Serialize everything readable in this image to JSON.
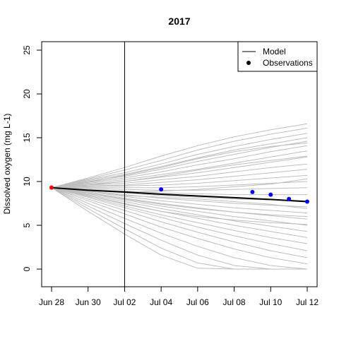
{
  "chart_data": {
    "type": "line",
    "title": "2017",
    "xlabel": "",
    "ylabel": "Dissolved oxygen (mg L-1)",
    "x_range": [
      "2017-06-28",
      "2017-07-12"
    ],
    "x_ticks": [
      {
        "date": "2017-06-28",
        "label": "Jun 28"
      },
      {
        "date": "2017-06-30",
        "label": "Jun 30"
      },
      {
        "date": "2017-07-02",
        "label": "Jul 02"
      },
      {
        "date": "2017-07-04",
        "label": "Jul 04"
      },
      {
        "date": "2017-07-06",
        "label": "Jul 06"
      },
      {
        "date": "2017-07-08",
        "label": "Jul 08"
      },
      {
        "date": "2017-07-10",
        "label": "Jul 10"
      },
      {
        "date": "2017-07-12",
        "label": "Jul 12"
      }
    ],
    "ylim": [
      -2,
      26
    ],
    "y_ticks": [
      0,
      5,
      10,
      15,
      20,
      25
    ],
    "grid": false,
    "forecast_start": "2017-07-02",
    "legend": {
      "position": "top-right",
      "entries": [
        {
          "label": "Model",
          "symbol": "line"
        },
        {
          "label": "Observations",
          "symbol": "point"
        }
      ]
    },
    "model_mean": {
      "x": [
        "2017-06-28",
        "2017-06-30",
        "2017-07-02",
        "2017-07-04",
        "2017-07-06",
        "2017-07-08",
        "2017-07-10",
        "2017-07-12"
      ],
      "y": [
        9.3,
        9.0,
        8.8,
        8.55,
        8.35,
        8.15,
        7.95,
        7.7
      ],
      "color": "#000000"
    },
    "ensemble": {
      "color": "#bebebe",
      "x": [
        "2017-06-28",
        "2017-06-30",
        "2017-07-02",
        "2017-07-04",
        "2017-07-06",
        "2017-07-08",
        "2017-07-10",
        "2017-07-12"
      ],
      "members": [
        [
          9.3,
          10.4,
          11.6,
          12.9,
          14.1,
          15.1,
          15.9,
          16.6
        ],
        [
          9.3,
          10.3,
          11.3,
          12.4,
          13.6,
          14.6,
          15.4,
          16.1
        ],
        [
          9.3,
          10.2,
          11.0,
          12.0,
          13.1,
          14.0,
          14.8,
          15.5
        ],
        [
          9.3,
          10.1,
          10.8,
          11.7,
          12.7,
          13.6,
          14.3,
          15.0
        ],
        [
          9.3,
          10.0,
          10.6,
          11.4,
          12.3,
          13.1,
          13.9,
          14.6
        ],
        [
          9.3,
          9.9,
          10.4,
          11.1,
          11.9,
          12.6,
          13.4,
          14.1
        ],
        [
          9.3,
          9.8,
          10.2,
          10.8,
          11.4,
          12.1,
          12.8,
          13.5
        ],
        [
          9.3,
          9.7,
          10.0,
          10.5,
          11.0,
          11.6,
          12.2,
          12.8
        ],
        [
          9.3,
          9.6,
          9.8,
          10.2,
          10.6,
          11.1,
          11.6,
          12.0
        ],
        [
          9.3,
          9.5,
          9.6,
          9.9,
          10.2,
          10.6,
          11.0,
          11.4
        ],
        [
          9.3,
          9.4,
          9.5,
          9.6,
          9.8,
          10.1,
          10.4,
          10.7
        ],
        [
          9.3,
          9.3,
          9.3,
          9.3,
          9.4,
          9.6,
          9.8,
          10.0
        ],
        [
          9.3,
          9.2,
          9.1,
          9.0,
          9.0,
          9.1,
          9.2,
          9.3
        ],
        [
          9.3,
          9.1,
          8.9,
          8.7,
          8.6,
          8.5,
          8.5,
          8.5
        ],
        [
          9.3,
          9.0,
          8.7,
          8.4,
          8.2,
          8.0,
          7.9,
          7.8
        ],
        [
          9.3,
          8.9,
          8.5,
          8.1,
          7.8,
          7.5,
          7.3,
          7.1
        ],
        [
          9.3,
          8.8,
          8.3,
          7.8,
          7.4,
          7.0,
          6.7,
          6.4
        ],
        [
          9.3,
          8.7,
          8.1,
          7.5,
          7.0,
          6.5,
          6.1,
          5.7
        ],
        [
          9.3,
          8.6,
          7.9,
          7.2,
          6.6,
          6.0,
          5.5,
          5.0
        ],
        [
          9.3,
          8.5,
          7.7,
          6.9,
          6.2,
          5.5,
          4.9,
          4.3
        ],
        [
          9.3,
          8.4,
          7.5,
          6.6,
          5.8,
          5.0,
          4.3,
          3.6
        ],
        [
          9.3,
          8.3,
          7.2,
          6.2,
          5.3,
          4.4,
          3.6,
          2.9
        ],
        [
          9.3,
          8.2,
          7.0,
          5.9,
          4.8,
          3.8,
          2.9,
          2.1
        ],
        [
          9.3,
          8.0,
          6.7,
          5.4,
          4.2,
          3.1,
          2.1,
          1.3
        ],
        [
          9.3,
          7.8,
          6.3,
          4.8,
          3.5,
          2.3,
          1.3,
          0.6
        ],
        [
          9.3,
          7.5,
          5.8,
          4.1,
          2.6,
          1.3,
          0.4,
          0.0
        ],
        [
          9.3,
          7.2,
          5.2,
          3.3,
          1.6,
          0.4,
          0.0,
          0.0
        ],
        [
          9.3,
          6.9,
          4.6,
          2.4,
          0.7,
          0.0,
          0.0,
          0.0
        ],
        [
          9.3,
          6.6,
          4.0,
          1.6,
          0.1,
          0.0,
          0.0,
          0.0
        ],
        [
          9.3,
          9.9,
          10.7,
          11.6,
          12.6,
          13.4,
          14.0,
          14.4
        ],
        [
          9.3,
          9.6,
          10.0,
          10.6,
          11.3,
          11.9,
          12.4,
          12.9
        ],
        [
          9.3,
          9.1,
          8.8,
          8.9,
          9.1,
          9.4,
          9.7,
          10.3
        ],
        [
          9.3,
          8.9,
          8.4,
          8.2,
          8.0,
          7.7,
          7.4,
          6.9
        ],
        [
          9.3,
          8.7,
          8.0,
          7.4,
          6.9,
          6.5,
          6.2,
          6.0
        ],
        [
          9.3,
          8.4,
          7.4,
          6.6,
          6.0,
          5.6,
          5.3,
          5.1
        ]
      ]
    },
    "observations": {
      "color": "#0000ff",
      "x": [
        "2017-07-04",
        "2017-07-09",
        "2017-07-10",
        "2017-07-11",
        "2017-07-12"
      ],
      "y": [
        9.1,
        8.8,
        8.5,
        8.0,
        7.7
      ]
    },
    "initial_observation": {
      "color": "#ff0000",
      "x": "2017-06-28",
      "y": 9.3
    }
  }
}
